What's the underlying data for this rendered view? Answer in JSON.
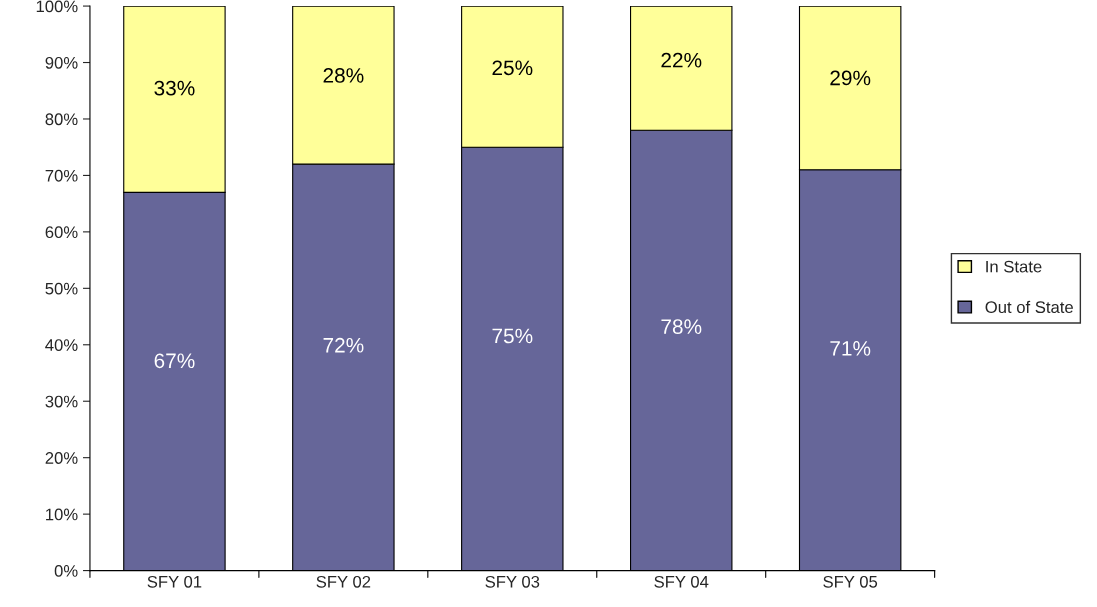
{
  "chart_data": {
    "type": "bar",
    "stacked": true,
    "categories": [
      "SFY 01",
      "SFY 02",
      "SFY 03",
      "SFY 04",
      "SFY 05"
    ],
    "series": [
      {
        "name": "Out of State",
        "color": "#666699",
        "values": [
          67,
          72,
          75,
          78,
          71
        ],
        "value_labels": [
          "67%",
          "72%",
          "75%",
          "78%",
          "71%"
        ]
      },
      {
        "name": "In State",
        "color": "#ffff99",
        "values": [
          33,
          28,
          25,
          22,
          29
        ],
        "value_labels": [
          "33%",
          "28%",
          "25%",
          "22%",
          "29%"
        ]
      }
    ],
    "ylim": [
      0,
      100
    ],
    "yticks": [
      {
        "value": 0,
        "label": "0%"
      },
      {
        "value": 10,
        "label": "10%"
      },
      {
        "value": 20,
        "label": "20%"
      },
      {
        "value": 30,
        "label": "30%"
      },
      {
        "value": 40,
        "label": "40%"
      },
      {
        "value": 50,
        "label": "50%"
      },
      {
        "value": 60,
        "label": "60%"
      },
      {
        "value": 70,
        "label": "70%"
      },
      {
        "value": 80,
        "label": "80%"
      },
      {
        "value": 90,
        "label": "90%"
      },
      {
        "value": 100,
        "label": "100%"
      }
    ],
    "grid": false,
    "legend": "right"
  }
}
